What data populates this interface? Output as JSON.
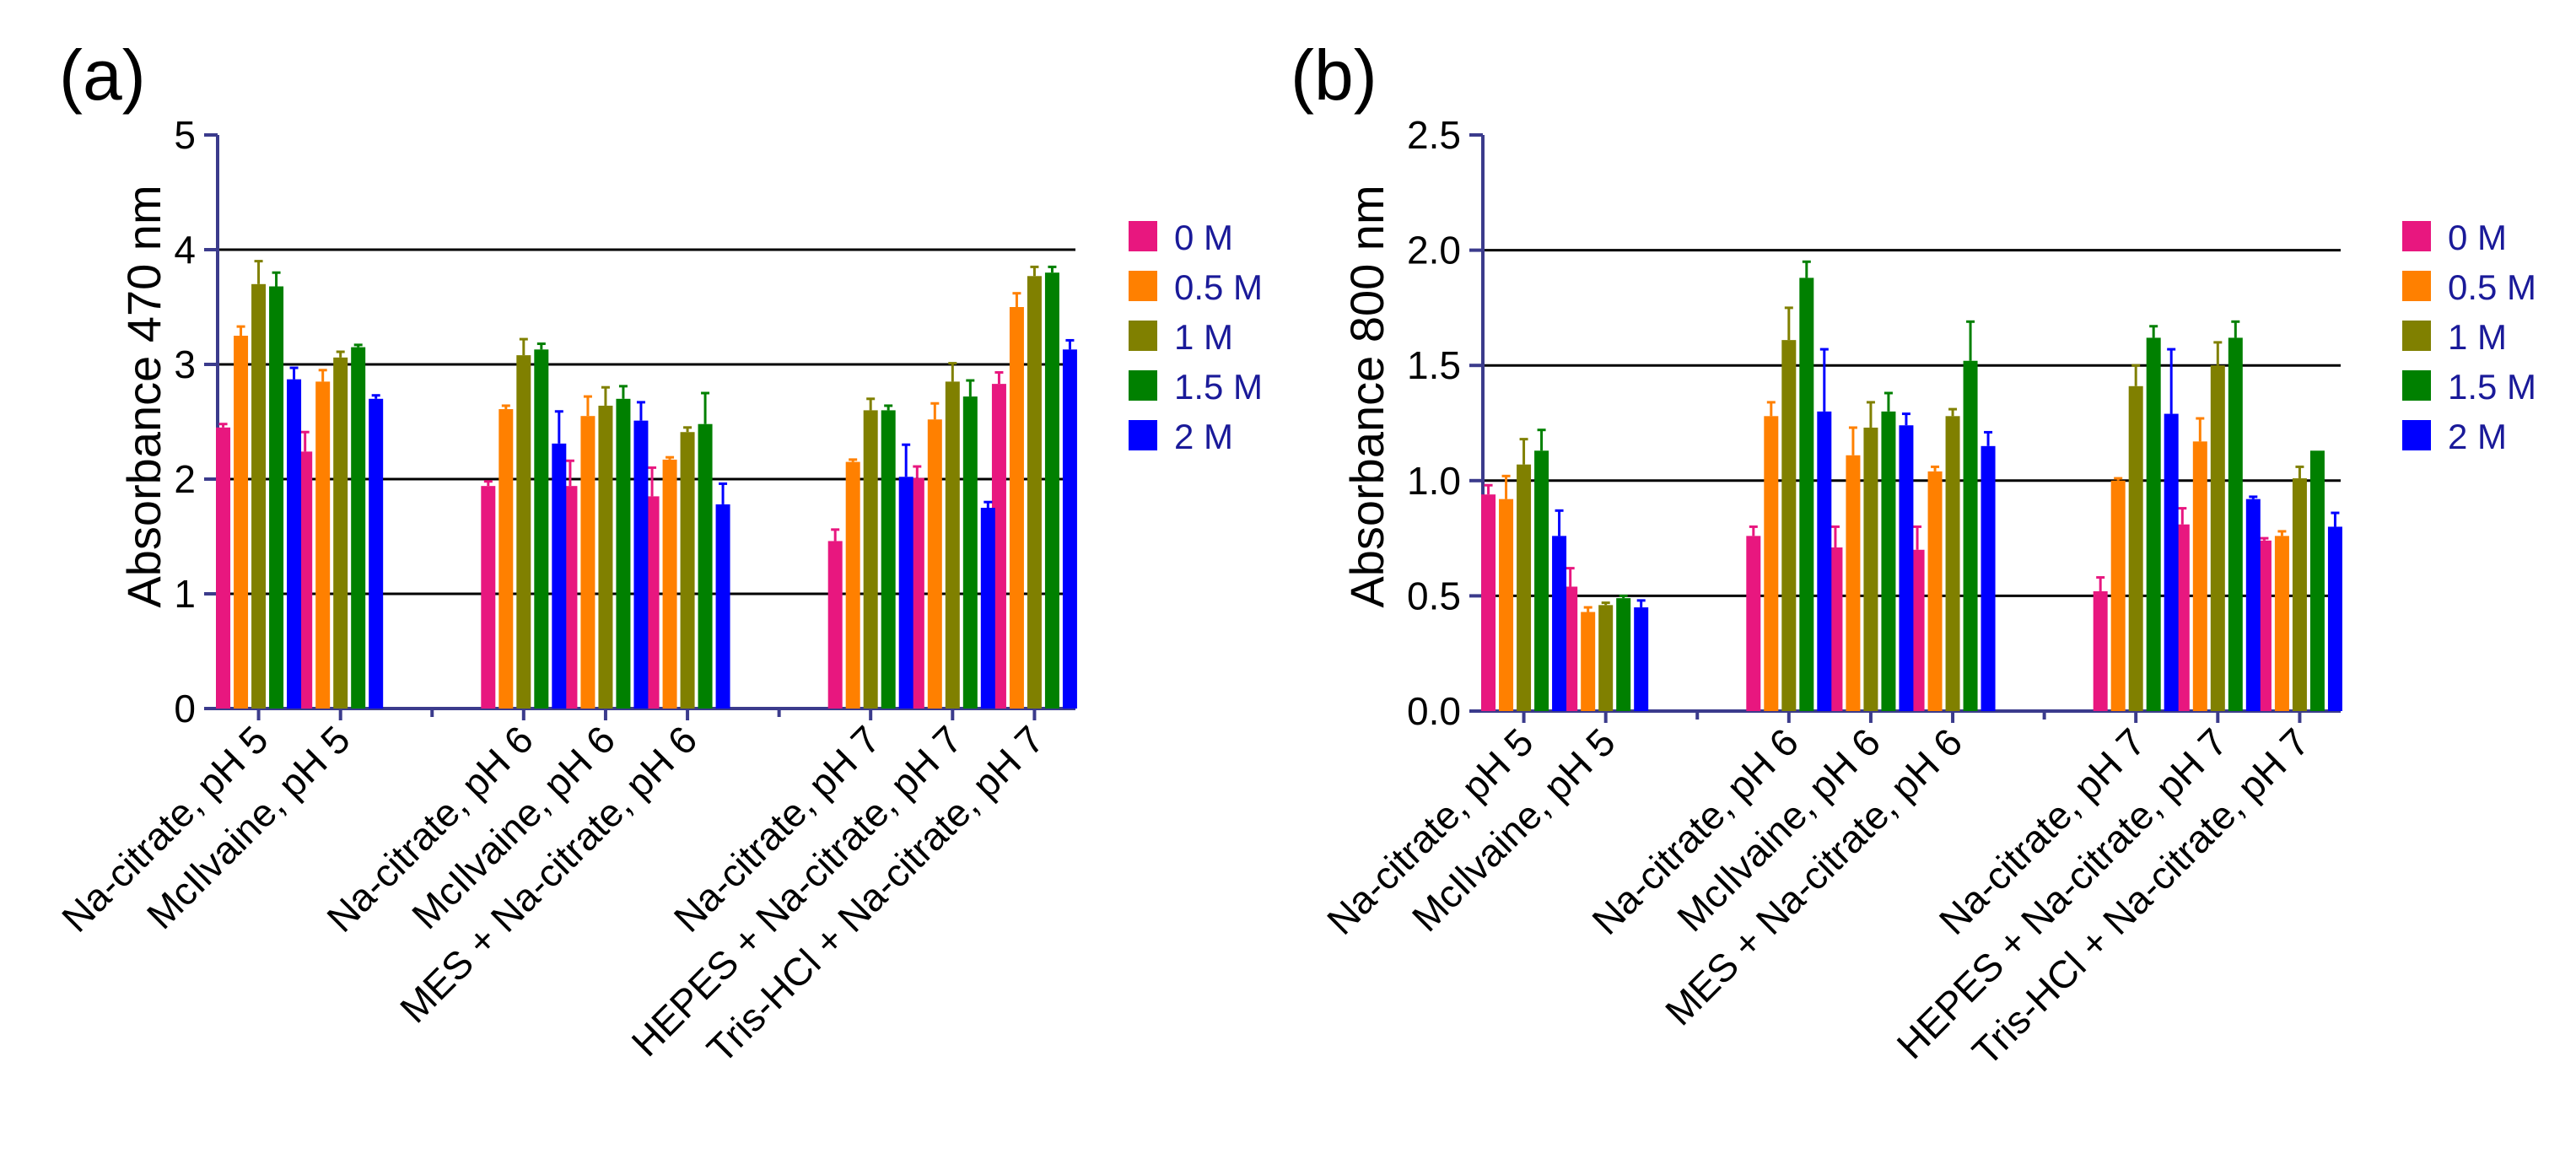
{
  "chart_data": [
    {
      "type": "bar",
      "panel": "(a)",
      "ylabel": "Absorbance 470 nm",
      "xlabel": "",
      "ylim": [
        0,
        5
      ],
      "yticks": [
        "0",
        "1",
        "2",
        "3",
        "4",
        "5"
      ],
      "ytick_values": [
        0,
        1,
        2,
        3,
        4,
        5
      ],
      "gridlines": [
        1,
        2,
        3,
        4
      ],
      "legend_position": "right",
      "categories": [
        "Na-citrate, pH 5",
        "McIlvaine, pH 5",
        "Na-citrate, pH 6",
        "McIlvaine, pH 6",
        "MES + Na-citrate, pH 6",
        "Na-citrate, pH 7",
        "HEPES + Na-citrate, pH 7",
        "Tris-HCl + Na-citrate, pH 7"
      ],
      "groups": [
        [
          0,
          1
        ],
        [
          2,
          3,
          4
        ],
        [
          5,
          6,
          7
        ]
      ],
      "series": [
        {
          "name": "0 M",
          "color": "#e8177f",
          "values": [
            2.45,
            2.24,
            1.94,
            1.94,
            1.85,
            1.46,
            2.01,
            2.83
          ],
          "errors": [
            0.03,
            0.17,
            0.04,
            0.22,
            0.25,
            0.1,
            0.1,
            0.1
          ]
        },
        {
          "name": "0.5 M",
          "color": "#ff8000",
          "values": [
            3.25,
            2.85,
            2.61,
            2.55,
            2.17,
            2.15,
            2.52,
            3.5
          ],
          "errors": [
            0.08,
            0.1,
            0.03,
            0.17,
            0.02,
            0.02,
            0.14,
            0.12
          ]
        },
        {
          "name": "1 M",
          "color": "#808000",
          "values": [
            3.7,
            3.06,
            3.08,
            2.64,
            2.41,
            2.6,
            2.85,
            3.77
          ],
          "errors": [
            0.2,
            0.05,
            0.14,
            0.16,
            0.04,
            0.1,
            0.16,
            0.08
          ]
        },
        {
          "name": "1.5 M",
          "color": "#008000",
          "values": [
            3.68,
            3.15,
            3.13,
            2.7,
            2.48,
            2.6,
            2.72,
            3.8
          ],
          "errors": [
            0.12,
            0.02,
            0.05,
            0.11,
            0.27,
            0.04,
            0.14,
            0.05
          ]
        },
        {
          "name": "2 M",
          "color": "#0000ff",
          "values": [
            2.87,
            2.7,
            2.31,
            2.51,
            1.78,
            2.02,
            1.75,
            3.13
          ],
          "errors": [
            0.1,
            0.03,
            0.28,
            0.16,
            0.18,
            0.28,
            0.05,
            0.08
          ]
        }
      ]
    },
    {
      "type": "bar",
      "panel": "(b)",
      "ylabel": "Absorbance 800 nm",
      "xlabel": "",
      "ylim": [
        0,
        2.5
      ],
      "yticks": [
        "0.0",
        "0.5",
        "1.0",
        "1.5",
        "2.0",
        "2.5"
      ],
      "ytick_values": [
        0,
        0.5,
        1.0,
        1.5,
        2.0,
        2.5
      ],
      "gridlines": [
        0.5,
        1.0,
        1.5,
        2.0
      ],
      "legend_position": "right",
      "categories": [
        "Na-citrate, pH 5",
        "McIlvaine, pH 5",
        "Na-citrate, pH 6",
        "McIlvaine, pH 6",
        "MES + Na-citrate, pH 6",
        "Na-citrate, pH 7",
        "HEPES + Na-citrate, pH 7",
        "Tris-HCl + Na-citrate, pH 7"
      ],
      "groups": [
        [
          0,
          1
        ],
        [
          2,
          3,
          4
        ],
        [
          5,
          6,
          7
        ]
      ],
      "series": [
        {
          "name": "0 M",
          "color": "#e8177f",
          "values": [
            0.94,
            0.54,
            0.76,
            0.71,
            0.7,
            0.52,
            0.81,
            0.74
          ],
          "errors": [
            0.04,
            0.08,
            0.04,
            0.09,
            0.1,
            0.06,
            0.07,
            0.01
          ]
        },
        {
          "name": "0.5 M",
          "color": "#ff8000",
          "values": [
            0.92,
            0.43,
            1.28,
            1.11,
            1.04,
            1.0,
            1.17,
            0.76
          ],
          "errors": [
            0.1,
            0.02,
            0.06,
            0.12,
            0.02,
            0.01,
            0.1,
            0.02
          ]
        },
        {
          "name": "1 M",
          "color": "#808000",
          "values": [
            1.07,
            0.46,
            1.61,
            1.23,
            1.28,
            1.41,
            1.5,
            1.01
          ],
          "errors": [
            0.11,
            0.01,
            0.14,
            0.11,
            0.03,
            0.09,
            0.1,
            0.05
          ]
        },
        {
          "name": "1.5 M",
          "color": "#008000",
          "values": [
            1.13,
            0.49,
            1.88,
            1.3,
            1.52,
            1.62,
            1.62,
            1.13
          ],
          "errors": [
            0.09,
            0.01,
            0.07,
            0.08,
            0.17,
            0.05,
            0.07,
            0.0
          ]
        },
        {
          "name": "2 M",
          "color": "#0000ff",
          "values": [
            0.76,
            0.45,
            1.3,
            1.24,
            1.15,
            1.29,
            0.92,
            0.8
          ],
          "errors": [
            0.11,
            0.03,
            0.27,
            0.05,
            0.06,
            0.28,
            0.01,
            0.06
          ]
        }
      ]
    }
  ]
}
